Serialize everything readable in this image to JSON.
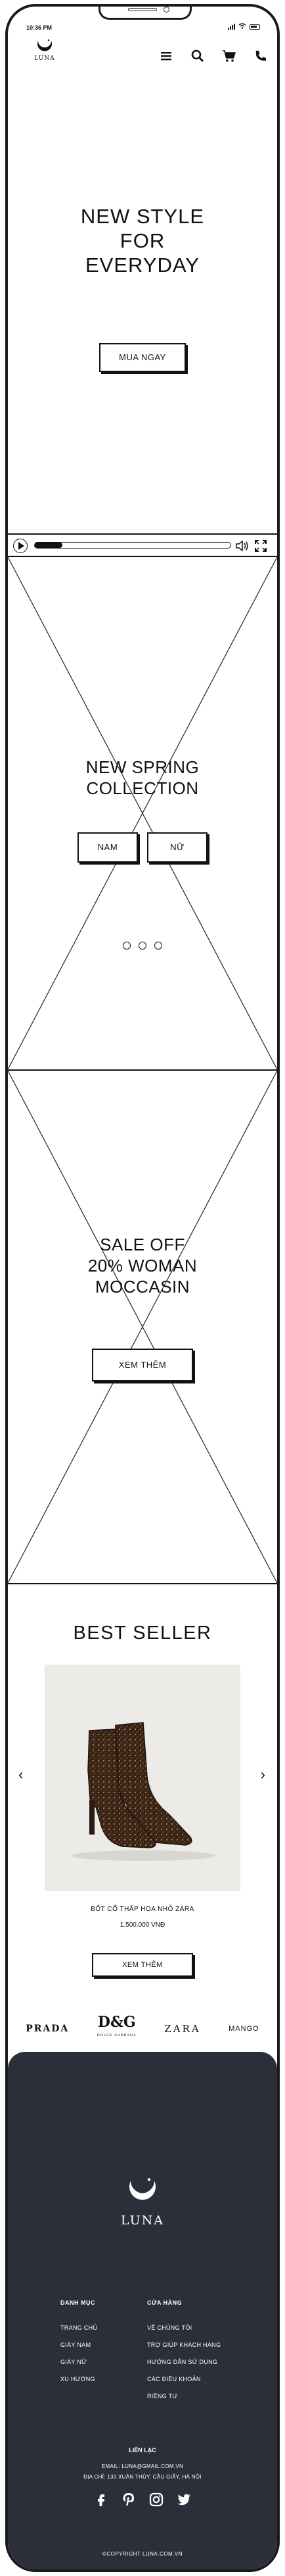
{
  "status": {
    "time": "10:36 PM"
  },
  "header": {
    "logo_text": "LUNA",
    "icons": [
      "menu-icon",
      "search-icon",
      "cart-icon",
      "phone-icon"
    ]
  },
  "hero": {
    "title": "NEW STYLE\nFOR\nEVERYDAY",
    "cta": "MUA NGAY"
  },
  "video_player": {
    "progress": 0.14,
    "icons": [
      "play-icon",
      "volume-icon",
      "fullscreen-icon"
    ]
  },
  "collection": {
    "title": "NEW SPRING\nCOLLECTION",
    "buttons": [
      "NAM",
      "NỮ"
    ],
    "slide_count": 3
  },
  "sale": {
    "title": "SALE OFF\n20% WOMAN\nMOCCASIN",
    "cta": "XEM THÊM"
  },
  "best_seller": {
    "title": "BEST SELLER",
    "product": {
      "name": "BỐT CỔ THẤP HOA NHỎ ZARA",
      "price": "1.500.000 VNĐ",
      "cta": "XEM THÊM"
    }
  },
  "brands": {
    "prada": "PRADA",
    "dg": "D&G",
    "dg_sub": "DOLCE GABBANA",
    "zara": "ZARA",
    "mango": "MANGO"
  },
  "footer": {
    "logo_text": "LUNA",
    "categories": {
      "title": "DANH MỤC",
      "items": [
        "TRANG CHỦ",
        "GIÀY NAM",
        "GIÀY NỮ",
        "XU HƯỚNG"
      ]
    },
    "store": {
      "title": "CỬA HÀNG",
      "items": [
        "VỀ CHÚNG TÔI",
        "TRỢ GIÚP KHÁCH HÀNG",
        "HƯỚNG DẪN SỬ DỤNG",
        "CÁC ĐIỀU KHOẢN",
        "RIÊNG TƯ"
      ]
    },
    "contact": {
      "title": "LIÊN LẠC",
      "email": "EMAIL: LUNA@GMAIL.COM.VN",
      "address": "ĐỊA CHỈ: 133 XUÂN THỦY, CẦU GIẤY, HÀ NỘI"
    },
    "social_icons": [
      "facebook-icon",
      "pinterest-icon",
      "instagram-icon",
      "twitter-icon"
    ],
    "copyright": "©COPYRIGHT LUNA.COM.VN"
  }
}
